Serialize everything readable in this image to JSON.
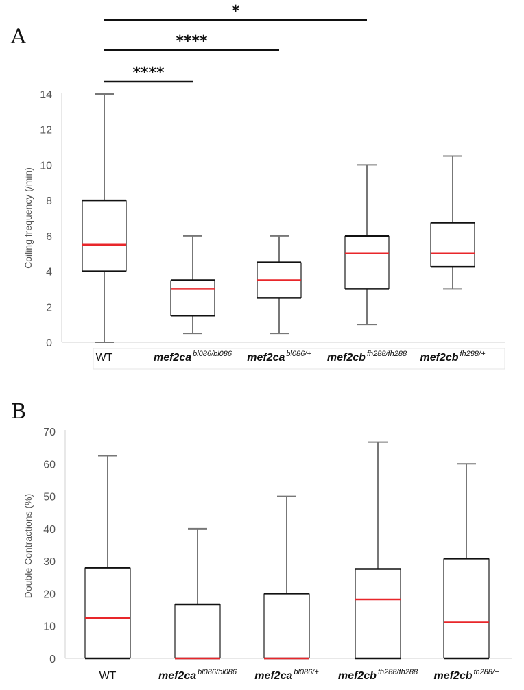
{
  "chart_data": [
    {
      "type": "box",
      "panel_label": "A",
      "ylabel": "Coiling frequency (/min)",
      "ylim": [
        0,
        14
      ],
      "yticks": [
        0,
        2,
        4,
        6,
        8,
        10,
        12,
        14
      ],
      "categories": [
        {
          "base": "WT",
          "sup": ""
        },
        {
          "base": "mef2ca",
          "sup": "bl086/bl086"
        },
        {
          "base": "mef2ca",
          "sup": "bl086/+"
        },
        {
          "base": "mef2cb",
          "sup": "fh288/fh288"
        },
        {
          "base": "mef2cb",
          "sup": "fh288/+"
        }
      ],
      "boxes": [
        {
          "min": 0,
          "q1": 4,
          "median": 5.5,
          "q3": 8,
          "max": 14
        },
        {
          "min": 0.5,
          "q1": 1.5,
          "median": 3,
          "q3": 3.5,
          "max": 6
        },
        {
          "min": 0.5,
          "q1": 2.5,
          "median": 3.5,
          "q3": 4.5,
          "max": 6
        },
        {
          "min": 1,
          "q1": 3,
          "median": 5,
          "q3": 6,
          "max": 10
        },
        {
          "min": 3,
          "q1": 4.25,
          "median": 5,
          "q3": 6.75,
          "max": 10.5
        }
      ],
      "significance": [
        {
          "from": 0,
          "to": 1,
          "label": "****"
        },
        {
          "from": 0,
          "to": 2,
          "label": "****"
        },
        {
          "from": 0,
          "to": 3,
          "label": "*"
        }
      ],
      "colors": {
        "median": "#e8262a",
        "box": "#111111",
        "whisker": "#777777"
      }
    },
    {
      "type": "box",
      "panel_label": "B",
      "ylabel": "Double Contractions (%)",
      "ylim": [
        0,
        70
      ],
      "yticks": [
        0,
        10,
        20,
        30,
        40,
        50,
        60,
        70
      ],
      "categories": [
        {
          "base": "WT",
          "sup": ""
        },
        {
          "base": "mef2ca",
          "sup": "bl086/bl086"
        },
        {
          "base": "mef2ca",
          "sup": "bl086/+"
        },
        {
          "base": "mef2cb",
          "sup": "fh288/fh288"
        },
        {
          "base": "mef2cb",
          "sup": "fh288/+"
        }
      ],
      "boxes": [
        {
          "min": 0,
          "q1": 0,
          "median": 12.5,
          "q3": 28,
          "max": 62.5
        },
        {
          "min": 0,
          "q1": 0,
          "median": 0,
          "q3": 16.7,
          "max": 40
        },
        {
          "min": 0,
          "q1": 0,
          "median": 0,
          "q3": 20,
          "max": 50
        },
        {
          "min": 0,
          "q1": 0,
          "median": 18.2,
          "q3": 27.6,
          "max": 66.7
        },
        {
          "min": 0,
          "q1": 0,
          "median": 11.1,
          "q3": 30.8,
          "max": 60
        }
      ],
      "significance": [],
      "colors": {
        "median": "#e8262a",
        "box": "#111111",
        "whisker": "#777777"
      }
    }
  ]
}
